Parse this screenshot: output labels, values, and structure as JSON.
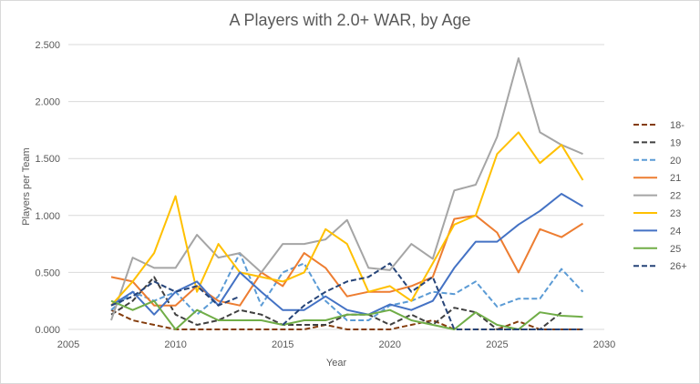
{
  "chart_data": {
    "type": "line",
    "title": "A Players with 2.0+ WAR, by Age",
    "xlabel": "Year",
    "ylabel": "Players per Team",
    "xlim": [
      2005,
      2030
    ],
    "ylim": [
      0,
      2.5
    ],
    "x_ticks": [
      "2005",
      "2010",
      "2015",
      "2020",
      "2025",
      "2030"
    ],
    "y_ticks": [
      "0.000",
      "0.500",
      "1.000",
      "1.500",
      "2.000",
      "2.500"
    ],
    "legend_position": "right",
    "x": [
      2007,
      2008,
      2009,
      2010,
      2011,
      2012,
      2013,
      2014,
      2015,
      2016,
      2017,
      2018,
      2019,
      2020,
      2021,
      2022,
      2023,
      2024,
      2025,
      2026,
      2027,
      2028,
      2029
    ],
    "series": [
      {
        "name": "18-",
        "color": "#843c0c",
        "dashed": true,
        "values": [
          0.17,
          0.08,
          0.04,
          0.0,
          0.0,
          0.0,
          0.0,
          0.0,
          0.0,
          0.0,
          0.04,
          0.0,
          0.0,
          0.0,
          0.04,
          0.08,
          0.0,
          0.0,
          0.0,
          0.07,
          0.0,
          0.0,
          0.0
        ]
      },
      {
        "name": "19",
        "color": "#404040",
        "dashed": true,
        "values": [
          0.13,
          0.25,
          0.46,
          0.13,
          0.04,
          0.08,
          0.17,
          0.13,
          0.04,
          0.04,
          0.04,
          0.13,
          0.13,
          0.04,
          0.13,
          0.04,
          0.19,
          0.15,
          0.0,
          0.0,
          0.0,
          0.15,
          null
        ]
      },
      {
        "name": "20",
        "color": "#5b9bd5",
        "dashed": true,
        "values": [
          0.17,
          0.33,
          0.25,
          0.33,
          0.13,
          0.29,
          0.67,
          0.21,
          0.5,
          0.58,
          0.25,
          0.08,
          0.08,
          0.21,
          0.25,
          0.33,
          0.31,
          0.42,
          0.2,
          0.27,
          0.27,
          0.53,
          0.33
        ]
      },
      {
        "name": "21",
        "color": "#ed7d31",
        "dashed": false,
        "values": [
          0.46,
          0.42,
          0.21,
          0.21,
          0.38,
          0.25,
          0.21,
          0.5,
          0.38,
          0.67,
          0.54,
          0.29,
          0.33,
          0.33,
          0.38,
          0.46,
          0.97,
          1.0,
          0.85,
          0.5,
          0.88,
          0.81,
          0.93
        ]
      },
      {
        "name": "22",
        "color": "#a5a5a5",
        "dashed": false,
        "values": [
          0.08,
          0.63,
          0.54,
          0.54,
          0.83,
          0.63,
          0.67,
          0.5,
          0.75,
          0.75,
          0.79,
          0.96,
          0.54,
          0.52,
          0.75,
          0.62,
          1.22,
          1.27,
          1.69,
          2.38,
          1.73,
          1.62,
          1.54
        ]
      },
      {
        "name": "23",
        "color": "#ffc000",
        "dashed": false,
        "values": [
          0.21,
          0.42,
          0.67,
          1.17,
          0.33,
          0.75,
          0.5,
          0.46,
          0.42,
          0.5,
          0.88,
          0.75,
          0.33,
          0.38,
          0.25,
          0.58,
          0.92,
          1.0,
          1.54,
          1.73,
          1.46,
          1.62,
          1.31
        ]
      },
      {
        "name": "24",
        "color": "#4472c4",
        "dashed": false,
        "values": [
          0.21,
          0.33,
          0.13,
          0.33,
          0.42,
          0.21,
          0.5,
          0.33,
          0.17,
          0.17,
          0.29,
          0.17,
          0.13,
          0.22,
          0.17,
          0.25,
          0.54,
          0.77,
          0.77,
          0.92,
          1.04,
          1.19,
          1.08
        ]
      },
      {
        "name": "25",
        "color": "#70ad47",
        "dashed": false,
        "values": [
          0.25,
          0.17,
          0.25,
          0.0,
          0.17,
          0.08,
          0.08,
          0.08,
          0.04,
          0.08,
          0.08,
          0.13,
          0.13,
          0.17,
          0.08,
          0.04,
          0.0,
          0.15,
          0.04,
          0.0,
          0.15,
          0.12,
          0.11
        ]
      },
      {
        "name": "26+",
        "color": "#264478",
        "dashed": true,
        "values": [
          0.21,
          0.29,
          0.42,
          0.33,
          0.38,
          0.21,
          0.29,
          null,
          0.04,
          0.21,
          0.33,
          0.42,
          0.46,
          0.58,
          0.33,
          0.46,
          0.0,
          0.0,
          0.0,
          0.0,
          0.0,
          0.0,
          0.0
        ]
      }
    ]
  }
}
